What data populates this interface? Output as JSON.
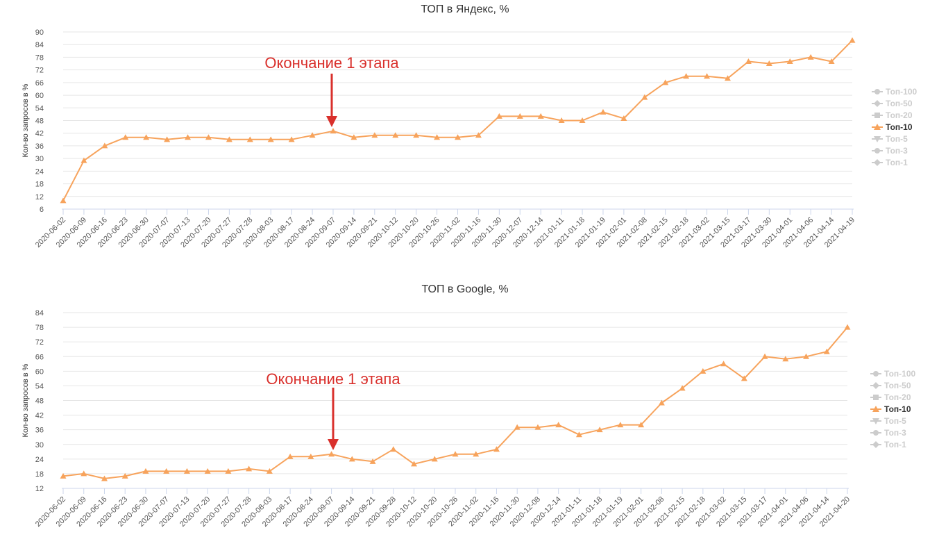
{
  "chart_data": [
    {
      "type": "line",
      "title": "ТОП в Яндекс, %",
      "ylabel": "Кол-во запросов в %",
      "ylim": [
        6,
        90
      ],
      "yticks": [
        6,
        12,
        18,
        24,
        30,
        36,
        42,
        48,
        54,
        60,
        66,
        72,
        78,
        84,
        90
      ],
      "grid": true,
      "legend_position": "right",
      "legend": [
        "Топ-100",
        "Топ-50",
        "Топ-20",
        "Топ-10",
        "Топ-5",
        "Топ-3",
        "Топ-1"
      ],
      "legend_active": "Топ-10",
      "annotation": {
        "text": "Окончание 1 этапа",
        "at_category": "2020-09-07"
      },
      "categories": [
        "2020-06-02",
        "2020-06-09",
        "2020-06-16",
        "2020-06-23",
        "2020-06-30",
        "2020-07-07",
        "2020-07-13",
        "2020-07-20",
        "2020-07-27",
        "2020-07-28",
        "2020-08-03",
        "2020-08-17",
        "2020-08-24",
        "2020-09-07",
        "2020-09-14",
        "2020-09-21",
        "2020-10-12",
        "2020-10-20",
        "2020-10-26",
        "2020-11-02",
        "2020-11-16",
        "2020-11-30",
        "2020-12-07",
        "2020-12-14",
        "2021-01-11",
        "2021-01-18",
        "2021-01-19",
        "2021-02-01",
        "2021-02-08",
        "2021-02-15",
        "2021-02-18",
        "2021-03-02",
        "2021-03-15",
        "2021-03-17",
        "2021-03-30",
        "2021-04-01",
        "2021-04-06",
        "2021-04-14",
        "2021-04-19"
      ],
      "series": [
        {
          "name": "Топ-10",
          "color": "#f7a35c",
          "values": [
            10,
            29,
            36,
            40,
            40,
            39,
            40,
            40,
            39,
            39,
            39,
            39,
            41,
            43,
            40,
            41,
            41,
            41,
            40,
            40,
            41,
            50,
            50,
            50,
            48,
            48,
            52,
            49,
            59,
            66,
            69,
            69,
            68,
            76,
            75,
            76,
            78,
            76,
            86
          ]
        }
      ]
    },
    {
      "type": "line",
      "title": "ТОП в Google, %",
      "ylabel": "Кол-во запросов в %",
      "ylim": [
        12,
        84
      ],
      "yticks": [
        12,
        18,
        24,
        30,
        36,
        42,
        48,
        54,
        60,
        66,
        72,
        78,
        84
      ],
      "grid": true,
      "legend_position": "right",
      "legend": [
        "Топ-100",
        "Топ-50",
        "Топ-20",
        "Топ-10",
        "Топ-5",
        "Топ-3",
        "Топ-1"
      ],
      "legend_active": "Топ-10",
      "annotation": {
        "text": "Окончание 1 этапа",
        "at_category": "2020-09-07"
      },
      "categories": [
        "2020-06-02",
        "2020-06-09",
        "2020-06-16",
        "2020-06-23",
        "2020-06-30",
        "2020-07-07",
        "2020-07-13",
        "2020-07-20",
        "2020-07-27",
        "2020-07-28",
        "2020-08-03",
        "2020-08-17",
        "2020-08-24",
        "2020-09-07",
        "2020-09-14",
        "2020-09-21",
        "2020-09-28",
        "2020-10-12",
        "2020-10-20",
        "2020-10-26",
        "2020-11-02",
        "2020-11-16",
        "2020-11-30",
        "2020-12-08",
        "2020-12-14",
        "2021-01-11",
        "2021-01-18",
        "2021-01-19",
        "2021-02-01",
        "2021-02-08",
        "2021-02-15",
        "2021-02-18",
        "2021-03-02",
        "2021-03-15",
        "2021-03-17",
        "2021-04-01",
        "2021-04-06",
        "2021-04-14",
        "2021-04-20"
      ],
      "series": [
        {
          "name": "Топ-10",
          "color": "#f7a35c",
          "values": [
            17,
            18,
            16,
            17,
            19,
            19,
            19,
            19,
            19,
            20,
            19,
            25,
            25,
            26,
            24,
            23,
            28,
            22,
            24,
            26,
            26,
            28,
            37,
            37,
            38,
            34,
            36,
            38,
            38,
            47,
            53,
            60,
            63,
            57,
            66,
            65,
            66,
            68,
            78
          ]
        }
      ]
    }
  ]
}
